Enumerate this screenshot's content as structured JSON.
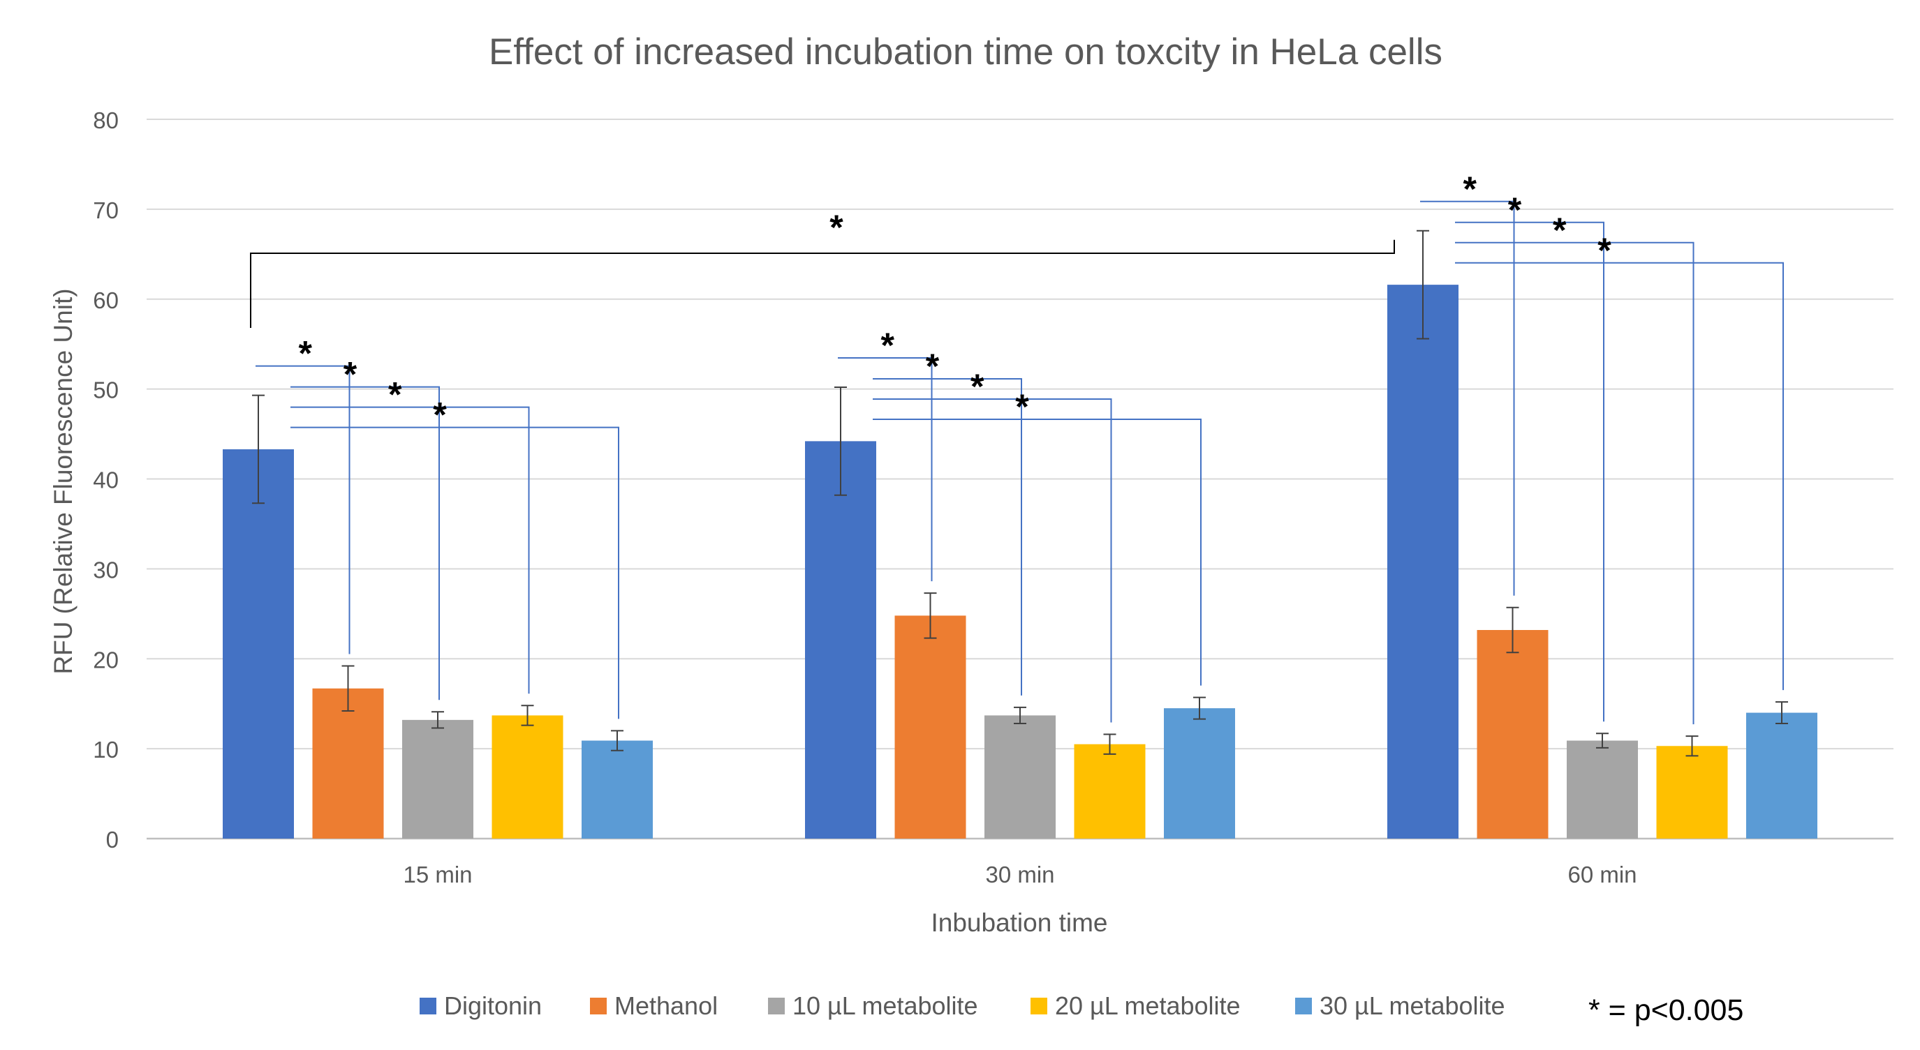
{
  "chart_data": {
    "type": "bar",
    "title": "Effect of increased incubation time on toxcity in HeLa cells",
    "xlabel": "Inbubation time",
    "ylabel": "RFU (Relative Fluorescence Unit)",
    "ylim": [
      0,
      80
    ],
    "yticks": [
      0,
      10,
      20,
      30,
      40,
      50,
      60,
      70,
      80
    ],
    "grid": true,
    "legend_position": "bottom",
    "categories": [
      "15 min",
      "30 min",
      "60 min"
    ],
    "series": [
      {
        "name": "Digitonin",
        "color": "#4472C4",
        "values": [
          43.3,
          44.2,
          61.6
        ],
        "errors": [
          6.0,
          6.0,
          6.0
        ]
      },
      {
        "name": "Methanol",
        "color": "#ED7D31",
        "values": [
          16.7,
          24.8,
          23.2
        ],
        "errors": [
          2.5,
          2.5,
          2.5
        ]
      },
      {
        "name": "10 µL metabolite",
        "color": "#A5A5A5",
        "values": [
          13.2,
          13.7,
          10.9
        ],
        "errors": [
          0.9,
          0.9,
          0.8
        ]
      },
      {
        "name": "20 µL metabolite",
        "color": "#FFC000",
        "values": [
          13.7,
          10.5,
          10.3
        ],
        "errors": [
          1.1,
          1.1,
          1.1
        ]
      },
      {
        "name": "30 µL metabolite",
        "color": "#5B9BD5",
        "values": [
          10.9,
          14.5,
          14.0
        ],
        "errors": [
          1.1,
          1.2,
          1.2
        ]
      }
    ],
    "significance_marker": "*",
    "significance_note": "* = p<0.005",
    "significance_line_color": "#4472C4",
    "significance_comparisons": [
      {
        "category": "15 min",
        "from": "Digitonin",
        "to": "Methanol"
      },
      {
        "category": "15 min",
        "from": "Digitonin",
        "to": "10 µL metabolite"
      },
      {
        "category": "15 min",
        "from": "Digitonin",
        "to": "20 µL metabolite"
      },
      {
        "category": "15 min",
        "from": "Digitonin",
        "to": "30 µL metabolite"
      },
      {
        "category": "30 min",
        "from": "Digitonin",
        "to": "Methanol"
      },
      {
        "category": "30 min",
        "from": "Digitonin",
        "to": "10 µL metabolite"
      },
      {
        "category": "30 min",
        "from": "Digitonin",
        "to": "20 µL metabolite"
      },
      {
        "category": "30 min",
        "from": "Digitonin",
        "to": "30 µL metabolite"
      },
      {
        "category": "60 min",
        "from": "Digitonin",
        "to": "Methanol"
      },
      {
        "category": "60 min",
        "from": "Digitonin",
        "to": "10 µL metabolite"
      },
      {
        "category": "60 min",
        "from": "Digitonin",
        "to": "20 µL metabolite"
      },
      {
        "category": "60 min",
        "from": "Digitonin",
        "to": "30 µL metabolite"
      }
    ],
    "cross_comparison": {
      "from_category": "15 min",
      "to_category": "60 min",
      "series": "Digitonin",
      "line_color": "#000000"
    }
  }
}
